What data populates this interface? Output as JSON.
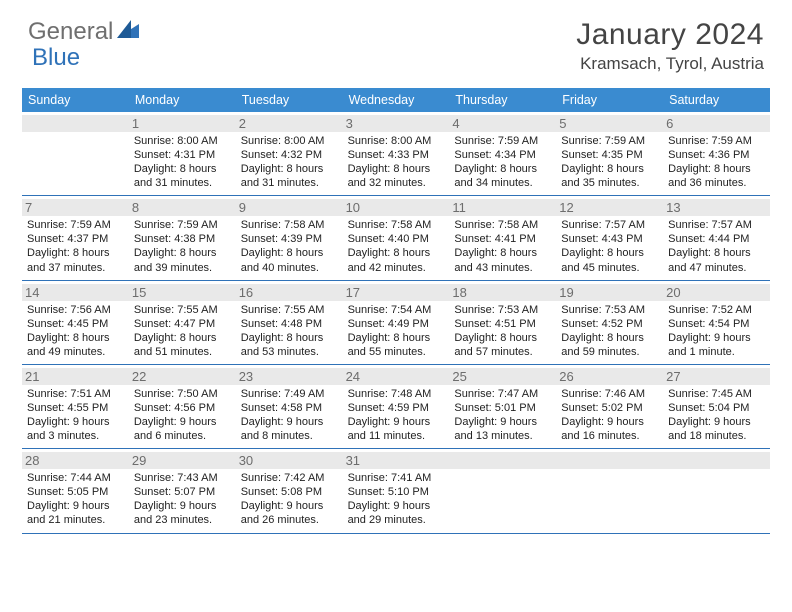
{
  "brand": {
    "part1": "General",
    "part2": "Blue"
  },
  "title": "January 2024",
  "location": "Kramsach, Tyrol, Austria",
  "colors": {
    "header_bg": "#3a8bd0",
    "rule": "#2f72b8",
    "daynum_bg": "#e9e9e9",
    "text": "#333333"
  },
  "dow": [
    "Sunday",
    "Monday",
    "Tuesday",
    "Wednesday",
    "Thursday",
    "Friday",
    "Saturday"
  ],
  "weeks": [
    [
      null,
      {
        "n": "1",
        "sr": "8:00 AM",
        "ss": "4:31 PM",
        "dl": "8 hours and 31 minutes."
      },
      {
        "n": "2",
        "sr": "8:00 AM",
        "ss": "4:32 PM",
        "dl": "8 hours and 31 minutes."
      },
      {
        "n": "3",
        "sr": "8:00 AM",
        "ss": "4:33 PM",
        "dl": "8 hours and 32 minutes."
      },
      {
        "n": "4",
        "sr": "7:59 AM",
        "ss": "4:34 PM",
        "dl": "8 hours and 34 minutes."
      },
      {
        "n": "5",
        "sr": "7:59 AM",
        "ss": "4:35 PM",
        "dl": "8 hours and 35 minutes."
      },
      {
        "n": "6",
        "sr": "7:59 AM",
        "ss": "4:36 PM",
        "dl": "8 hours and 36 minutes."
      }
    ],
    [
      {
        "n": "7",
        "sr": "7:59 AM",
        "ss": "4:37 PM",
        "dl": "8 hours and 37 minutes."
      },
      {
        "n": "8",
        "sr": "7:59 AM",
        "ss": "4:38 PM",
        "dl": "8 hours and 39 minutes."
      },
      {
        "n": "9",
        "sr": "7:58 AM",
        "ss": "4:39 PM",
        "dl": "8 hours and 40 minutes."
      },
      {
        "n": "10",
        "sr": "7:58 AM",
        "ss": "4:40 PM",
        "dl": "8 hours and 42 minutes."
      },
      {
        "n": "11",
        "sr": "7:58 AM",
        "ss": "4:41 PM",
        "dl": "8 hours and 43 minutes."
      },
      {
        "n": "12",
        "sr": "7:57 AM",
        "ss": "4:43 PM",
        "dl": "8 hours and 45 minutes."
      },
      {
        "n": "13",
        "sr": "7:57 AM",
        "ss": "4:44 PM",
        "dl": "8 hours and 47 minutes."
      }
    ],
    [
      {
        "n": "14",
        "sr": "7:56 AM",
        "ss": "4:45 PM",
        "dl": "8 hours and 49 minutes."
      },
      {
        "n": "15",
        "sr": "7:55 AM",
        "ss": "4:47 PM",
        "dl": "8 hours and 51 minutes."
      },
      {
        "n": "16",
        "sr": "7:55 AM",
        "ss": "4:48 PM",
        "dl": "8 hours and 53 minutes."
      },
      {
        "n": "17",
        "sr": "7:54 AM",
        "ss": "4:49 PM",
        "dl": "8 hours and 55 minutes."
      },
      {
        "n": "18",
        "sr": "7:53 AM",
        "ss": "4:51 PM",
        "dl": "8 hours and 57 minutes."
      },
      {
        "n": "19",
        "sr": "7:53 AM",
        "ss": "4:52 PM",
        "dl": "8 hours and 59 minutes."
      },
      {
        "n": "20",
        "sr": "7:52 AM",
        "ss": "4:54 PM",
        "dl": "9 hours and 1 minute."
      }
    ],
    [
      {
        "n": "21",
        "sr": "7:51 AM",
        "ss": "4:55 PM",
        "dl": "9 hours and 3 minutes."
      },
      {
        "n": "22",
        "sr": "7:50 AM",
        "ss": "4:56 PM",
        "dl": "9 hours and 6 minutes."
      },
      {
        "n": "23",
        "sr": "7:49 AM",
        "ss": "4:58 PM",
        "dl": "9 hours and 8 minutes."
      },
      {
        "n": "24",
        "sr": "7:48 AM",
        "ss": "4:59 PM",
        "dl": "9 hours and 11 minutes."
      },
      {
        "n": "25",
        "sr": "7:47 AM",
        "ss": "5:01 PM",
        "dl": "9 hours and 13 minutes."
      },
      {
        "n": "26",
        "sr": "7:46 AM",
        "ss": "5:02 PM",
        "dl": "9 hours and 16 minutes."
      },
      {
        "n": "27",
        "sr": "7:45 AM",
        "ss": "5:04 PM",
        "dl": "9 hours and 18 minutes."
      }
    ],
    [
      {
        "n": "28",
        "sr": "7:44 AM",
        "ss": "5:05 PM",
        "dl": "9 hours and 21 minutes."
      },
      {
        "n": "29",
        "sr": "7:43 AM",
        "ss": "5:07 PM",
        "dl": "9 hours and 23 minutes."
      },
      {
        "n": "30",
        "sr": "7:42 AM",
        "ss": "5:08 PM",
        "dl": "9 hours and 26 minutes."
      },
      {
        "n": "31",
        "sr": "7:41 AM",
        "ss": "5:10 PM",
        "dl": "9 hours and 29 minutes."
      },
      null,
      null,
      null
    ]
  ],
  "labels": {
    "sunrise": "Sunrise:",
    "sunset": "Sunset:",
    "daylight": "Daylight:"
  }
}
